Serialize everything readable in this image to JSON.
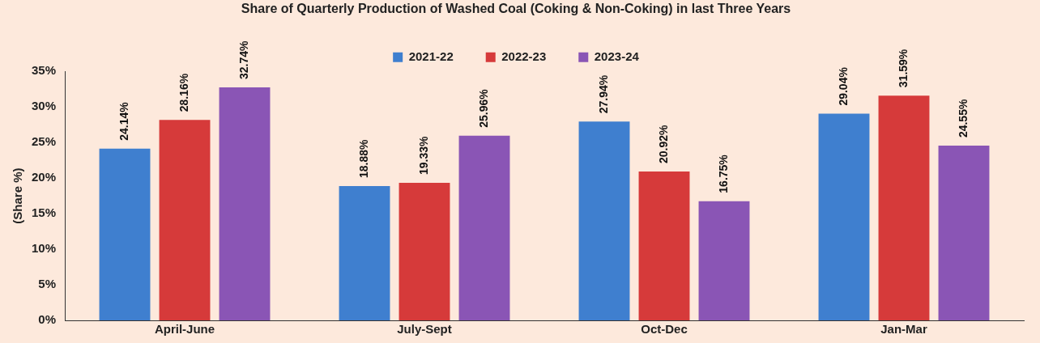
{
  "chart_data": {
    "type": "bar",
    "title": "Share of Quarterly Production of Washed Coal (Coking & Non-Coking) in last Three Years",
    "ylabel": "(Share %)",
    "categories": [
      "April-June",
      "July-Sept",
      "Oct-Dec",
      "Jan-Mar"
    ],
    "series": [
      {
        "name": "2021-22",
        "color": "#3f7fcf",
        "values": [
          24.14,
          18.88,
          27.94,
          29.04
        ],
        "value_labels": [
          "24.14%",
          "18.88%",
          "27.94%",
          "29.04%"
        ]
      },
      {
        "name": "2022-23",
        "color": "#d63a3a",
        "values": [
          28.16,
          19.33,
          20.92,
          31.59
        ],
        "value_labels": [
          "28.16%",
          "19.33%",
          "20.92%",
          "31.59%"
        ]
      },
      {
        "name": "2023-24",
        "color": "#8a55b5",
        "values": [
          32.74,
          25.96,
          16.75,
          24.55
        ],
        "value_labels": [
          "32.74%",
          "25.96%",
          "16.75%",
          "24.55%"
        ]
      }
    ],
    "ylim": [
      0,
      35
    ],
    "yticks": [
      {
        "value": 0,
        "label": "0%"
      },
      {
        "value": 5,
        "label": "5%"
      },
      {
        "value": 10,
        "label": "10%"
      },
      {
        "value": 15,
        "label": "15%"
      },
      {
        "value": 20,
        "label": "20%"
      },
      {
        "value": 25,
        "label": "25%"
      },
      {
        "value": 30,
        "label": "30%"
      },
      {
        "value": 35,
        "label": "35%"
      }
    ],
    "legend": "top",
    "grid": false
  }
}
